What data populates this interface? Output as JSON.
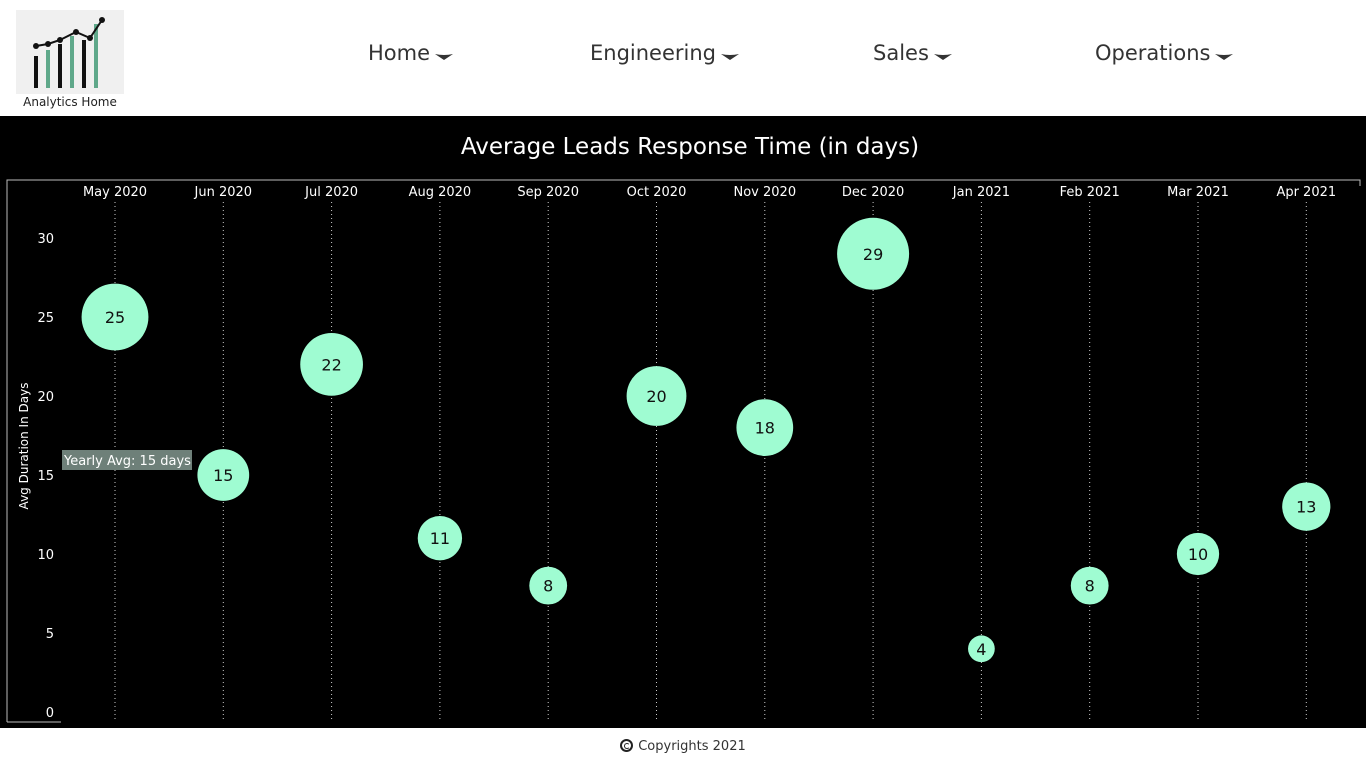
{
  "header": {
    "logo": {
      "text": "Analytics Home",
      "icon": "bar-line-chart-logo-icon",
      "accent": "#5fa88a"
    },
    "nav": [
      {
        "label": "Home"
      },
      {
        "label": "Engineering"
      },
      {
        "label": "Sales"
      },
      {
        "label": "Operations"
      }
    ]
  },
  "footer": {
    "text": "Copyrights 2021",
    "icon": "copyright-icon"
  },
  "chart_data": {
    "type": "scatter",
    "title": "Average Leads Response Time (in days)",
    "xlabel": "",
    "ylabel": "Avg Duration In Days",
    "categories": [
      "May 2020",
      "Jun 2020",
      "Jul 2020",
      "Aug 2020",
      "Sep 2020",
      "Oct 2020",
      "Nov 2020",
      "Dec 2020",
      "Jan 2021",
      "Feb 2021",
      "Mar 2021",
      "Apr 2021"
    ],
    "values": [
      25,
      15,
      22,
      11,
      8,
      20,
      18,
      29,
      4,
      8,
      10,
      13
    ],
    "yticks": [
      0,
      5,
      10,
      15,
      20,
      25,
      30
    ],
    "ylim": [
      0,
      30
    ],
    "reference_line": {
      "value": 15,
      "label": "Yearly Avg: 15 days"
    },
    "bubble_size_encodes": "value",
    "grid": "vertical dotted",
    "colors": {
      "bubble": "#9ffcd2",
      "background": "#000000",
      "text": "#ffffff",
      "grid": "#cccccc"
    }
  }
}
